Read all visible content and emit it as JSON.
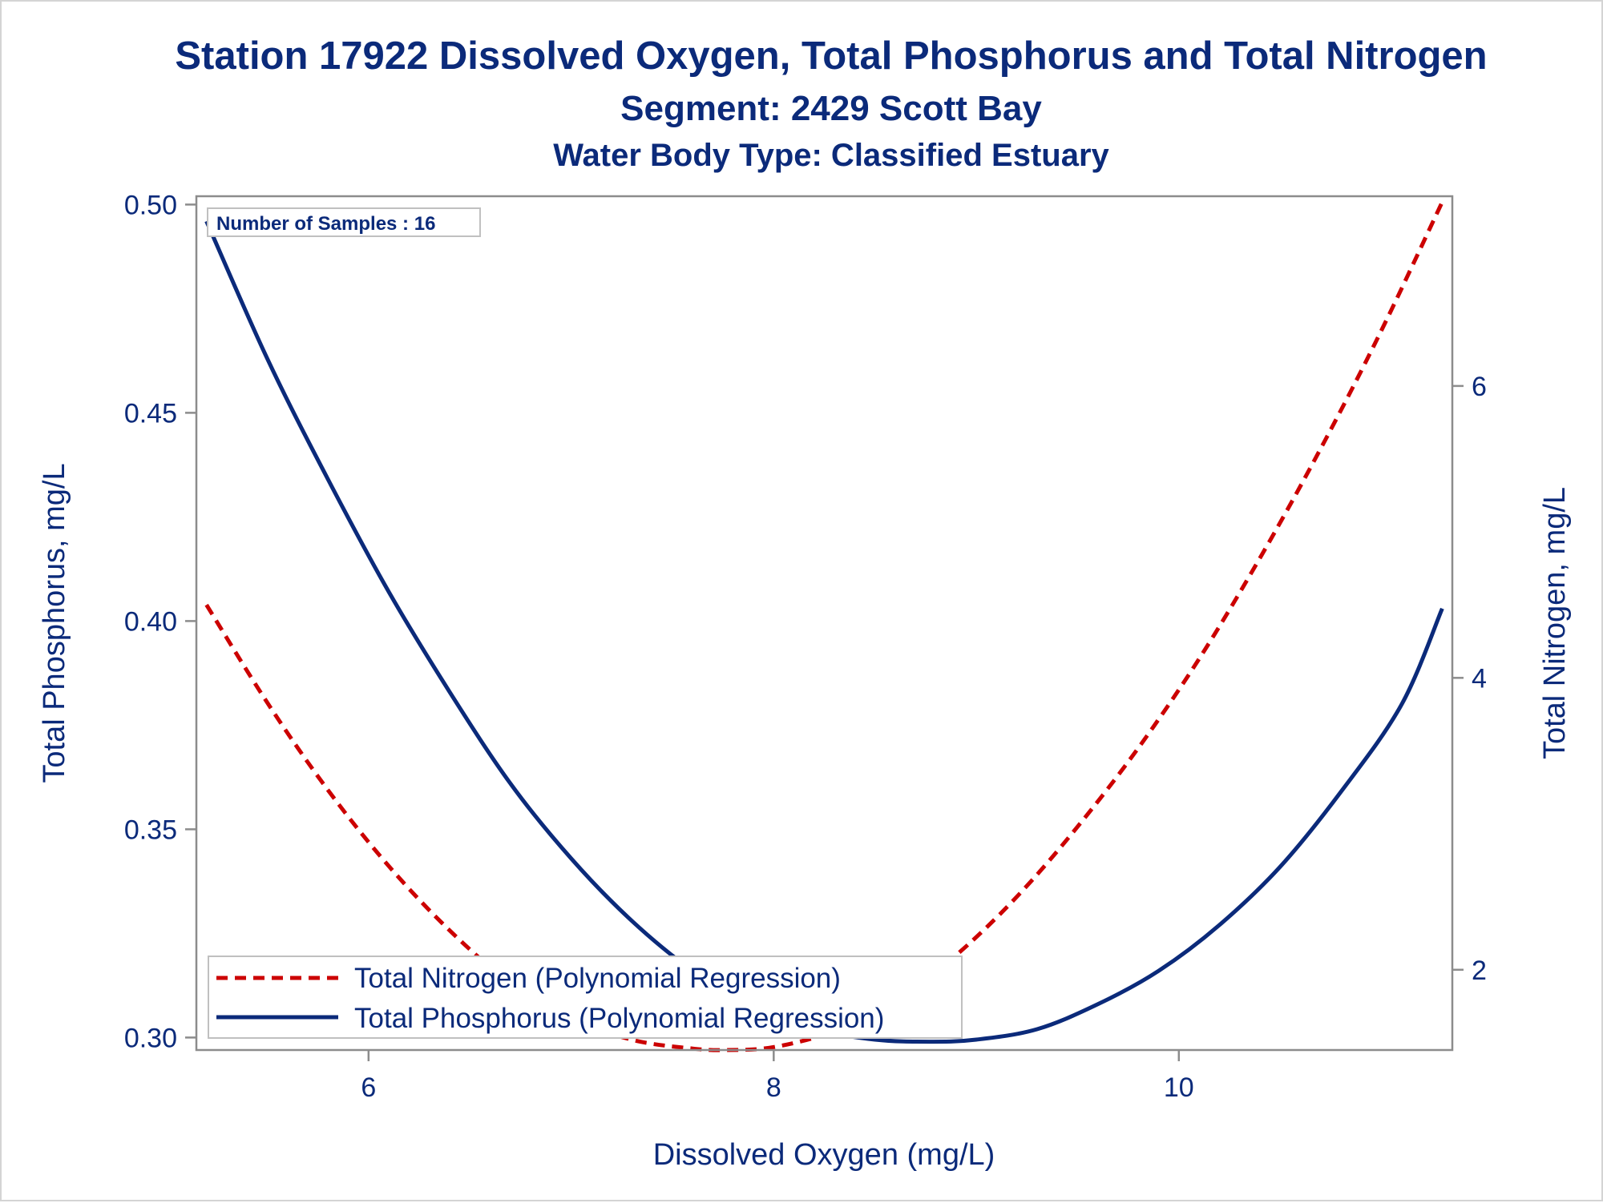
{
  "chart_data": {
    "type": "line",
    "title": "Station 17922  Dissolved Oxygen, Total Phosphorus and Total Nitrogen",
    "subtitle": "Segment: 2429  Scott Bay",
    "subtitle2": "Water Body Type: Classified Estuary",
    "xlabel": "Dissolved Oxygen (mg/L)",
    "ylabel_left": "Total Phosphorus, mg/L",
    "ylabel_right": "Total Nitrogen, mg/L",
    "xlim": [
      5.15,
      11.35
    ],
    "ylim_left": [
      0.297,
      0.502
    ],
    "ylim_right": [
      1.45,
      7.3
    ],
    "xticks": [
      6,
      8,
      10
    ],
    "xtick_labels": [
      "6",
      "8",
      "10"
    ],
    "yticks_left": [
      0.3,
      0.35,
      0.4,
      0.45,
      0.5
    ],
    "ytick_labels_left": [
      "0.30",
      "0.35",
      "0.40",
      "0.45",
      "0.50"
    ],
    "yticks_right": [
      2,
      4,
      6
    ],
    "ytick_labels_right": [
      "2",
      "4",
      "6"
    ],
    "annotation": "Number of Samples : 16",
    "legend_position": "bottom-left",
    "grid": false,
    "series": [
      {
        "name": "Total Nitrogen (Polynomial Regression)",
        "axis": "right",
        "style": "dashed",
        "color": "#cc0000",
        "x": [
          5.2,
          5.5,
          5.8,
          6.1,
          6.4,
          6.7,
          7.0,
          7.3,
          7.6,
          7.77,
          8.0,
          8.3,
          8.6,
          8.9,
          9.2,
          9.5,
          9.8,
          10.1,
          10.4,
          10.7,
          11.0,
          11.3
        ],
        "y": [
          4.5,
          3.83,
          3.23,
          2.71,
          2.27,
          1.91,
          1.67,
          1.52,
          1.46,
          1.45,
          1.47,
          1.58,
          1.79,
          2.1,
          2.5,
          2.98,
          3.52,
          4.13,
          4.82,
          5.57,
          6.38,
          7.26
        ]
      },
      {
        "name": "Total Phosphorus (Polynomial Regression)",
        "axis": "left",
        "style": "solid",
        "color": "#0b2a7a",
        "x": [
          5.2,
          5.5,
          5.8,
          6.1,
          6.4,
          6.7,
          7.0,
          7.3,
          7.6,
          7.9,
          8.2,
          8.5,
          8.77,
          9.0,
          9.3,
          9.6,
          9.9,
          10.2,
          10.5,
          10.8,
          11.1,
          11.3
        ],
        "y": [
          0.496,
          0.463,
          0.434,
          0.407,
          0.383,
          0.361,
          0.343,
          0.328,
          0.316,
          0.307,
          0.302,
          0.2995,
          0.299,
          0.2995,
          0.302,
          0.308,
          0.316,
          0.327,
          0.341,
          0.359,
          0.38,
          0.403
        ]
      }
    ]
  }
}
